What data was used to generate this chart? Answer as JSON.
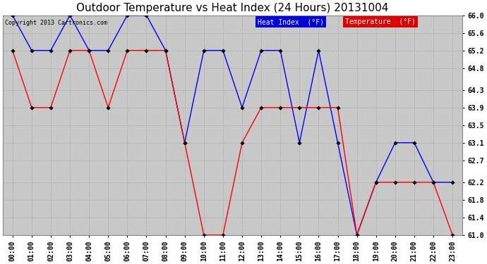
{
  "title": "Outdoor Temperature vs Heat Index (24 Hours) 20131004",
  "copyright": "Copyright 2013 Cartronics.com",
  "ylim": [
    61.0,
    66.0
  ],
  "yticks": [
    61.0,
    61.4,
    61.8,
    62.2,
    62.7,
    63.1,
    63.5,
    63.9,
    64.3,
    64.8,
    65.2,
    65.6,
    66.0
  ],
  "ytick_labels": [
    "61.0",
    "61.4",
    "61.8",
    "62.2",
    "62.7",
    "63.1",
    "63.5",
    "63.9",
    "64.3",
    "64.8",
    "65.2",
    "65.6",
    "66.0"
  ],
  "hours": [
    "00:00",
    "01:00",
    "02:00",
    "03:00",
    "04:00",
    "05:00",
    "06:00",
    "07:00",
    "08:00",
    "09:00",
    "10:00",
    "11:00",
    "12:00",
    "13:00",
    "14:00",
    "15:00",
    "16:00",
    "17:00",
    "18:00",
    "19:00",
    "20:00",
    "21:00",
    "22:00",
    "23:00"
  ],
  "heat_index": [
    66.0,
    65.2,
    65.2,
    66.0,
    65.2,
    65.2,
    66.0,
    66.0,
    65.2,
    63.1,
    65.2,
    65.2,
    63.9,
    65.2,
    65.2,
    63.1,
    65.2,
    63.1,
    61.0,
    62.2,
    63.1,
    63.1,
    62.2,
    62.2
  ],
  "temperature": [
    65.2,
    63.9,
    63.9,
    65.2,
    65.2,
    63.9,
    65.2,
    65.2,
    65.2,
    63.1,
    61.0,
    61.0,
    63.1,
    63.9,
    63.9,
    63.9,
    63.9,
    63.9,
    61.0,
    62.2,
    62.2,
    62.2,
    62.2,
    61.0
  ],
  "heat_index_color": "#0000ff",
  "temperature_color": "#ff0000",
  "bg_color": "#ffffff",
  "plot_bg_color": "#c8c8c8",
  "grid_color": "#aaaaaa",
  "title_fontsize": 11,
  "tick_fontsize": 7,
  "copyright_fontsize": 6,
  "legend_hi_bg": "#0000dd",
  "legend_temp_bg": "#dd0000",
  "legend_label_hi": "Heat Index  (°F)",
  "legend_label_temp": "Temperature  (°F)"
}
